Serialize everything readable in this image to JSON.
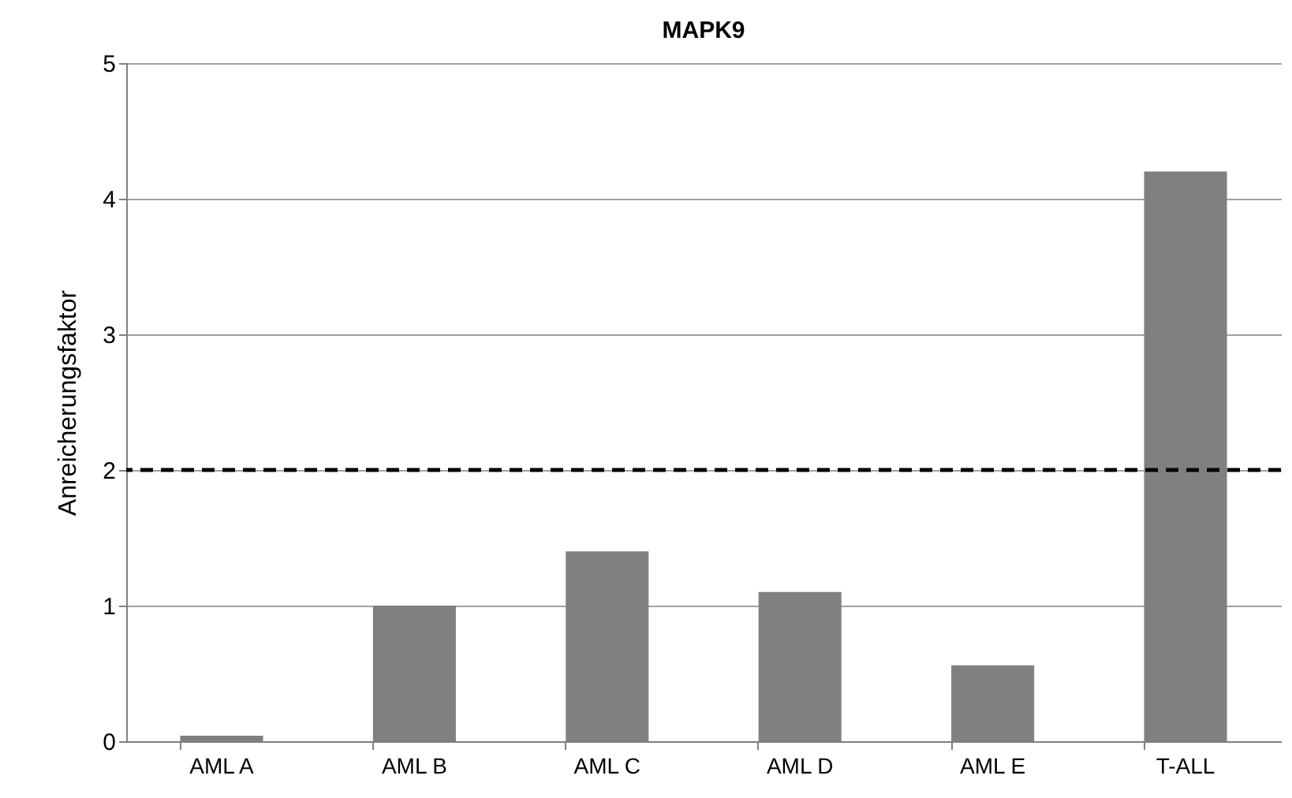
{
  "chart_data": {
    "type": "bar",
    "title": "MAPK9",
    "ylabel": "Anreicherungsfaktor",
    "categories": [
      "AML A",
      "AML B",
      "AML C",
      "AML D",
      "AML E",
      "T-ALL"
    ],
    "values": [
      0.04,
      1.0,
      1.4,
      1.1,
      0.56,
      4.2
    ],
    "color": "#808080",
    "ylim": [
      0,
      5
    ],
    "yticks": [
      0,
      1,
      2,
      3,
      4,
      5
    ],
    "grid": "y",
    "ref_lines": [
      {
        "axis": "y",
        "value": 2,
        "color": "#000000",
        "line_style": "dashed"
      }
    ]
  }
}
